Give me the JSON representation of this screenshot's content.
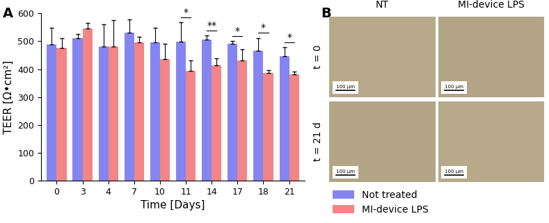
{
  "chart_data": {
    "type": "bar",
    "panel_label": "A",
    "x_label": "Time [Days]",
    "y_label": "TEER [Ω•cm²]",
    "categories": [
      "0",
      "3",
      "4",
      "7",
      "10",
      "11",
      "14",
      "17",
      "18",
      "21"
    ],
    "series": [
      {
        "name": "Not treated",
        "color": "#8585f2",
        "values": [
          488,
          510,
          480,
          532,
          497,
          498,
          505,
          490,
          467,
          446
        ],
        "errors": [
          60,
          15,
          82,
          47,
          52,
          70,
          15,
          10,
          45,
          33
        ]
      },
      {
        "name": "MI-device LPS",
        "color": "#f28585",
        "values": [
          475,
          545,
          480,
          497,
          435,
          393,
          413,
          432,
          386,
          382
        ],
        "errors": [
          37,
          20,
          95,
          20,
          55,
          38,
          25,
          40,
          10,
          10
        ]
      }
    ],
    "annotations": [
      {
        "category": "11",
        "text": "*"
      },
      {
        "category": "14",
        "text": "**"
      },
      {
        "category": "17",
        "text": "*"
      },
      {
        "category": "18",
        "text": "*"
      },
      {
        "category": "21",
        "text": "*"
      }
    ],
    "ylim": [
      0,
      600
    ],
    "yticks": [
      0,
      100,
      200,
      300,
      400,
      500,
      600
    ],
    "legend": "lower left"
  },
  "image_panel": {
    "panel_label": "B",
    "columns": [
      "NT",
      "MI-device LPS"
    ],
    "rows": [
      "t = 0",
      "t = 21 d"
    ],
    "scale_bar": "100 µm"
  }
}
